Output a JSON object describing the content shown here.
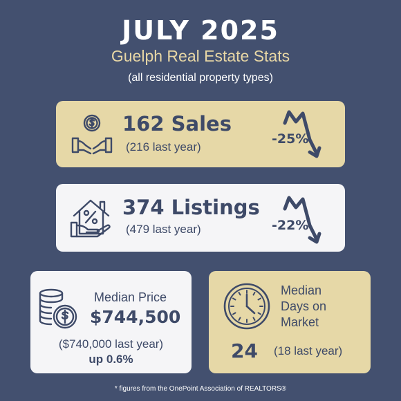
{
  "header": {
    "title": "JULY 2025",
    "subtitle": "Guelph Real Estate Stats",
    "note": "(all residential property types)"
  },
  "sales": {
    "headline": "162 Sales",
    "comparison": "(216 last year)",
    "change": "-25%",
    "icon": "money-hands-icon",
    "trend_icon": "downtrend-arrow-icon"
  },
  "listings": {
    "headline": "374 Listings",
    "comparison": "(479 last year)",
    "change": "-22%",
    "icon": "house-percent-icon",
    "trend_icon": "downtrend-arrow-icon"
  },
  "price": {
    "label": "Median Price",
    "value": "$744,500",
    "comparison": "($740,000 last year)",
    "change": "up 0.6%",
    "icon": "coin-stack-icon"
  },
  "days": {
    "label_line1": "Median",
    "label_line2": "Days on",
    "label_line3": "Market",
    "value": "24",
    "comparison": "(18 last year)",
    "icon": "clock-icon"
  },
  "footer": "* figures from the OnePoint Association of REALTORS®",
  "colors": {
    "background": "#43506f",
    "gold_card": "#e6d8a7",
    "white_card": "#f5f5f7",
    "text_dark": "#3e4a68",
    "subtitle": "#e8d7a5"
  }
}
